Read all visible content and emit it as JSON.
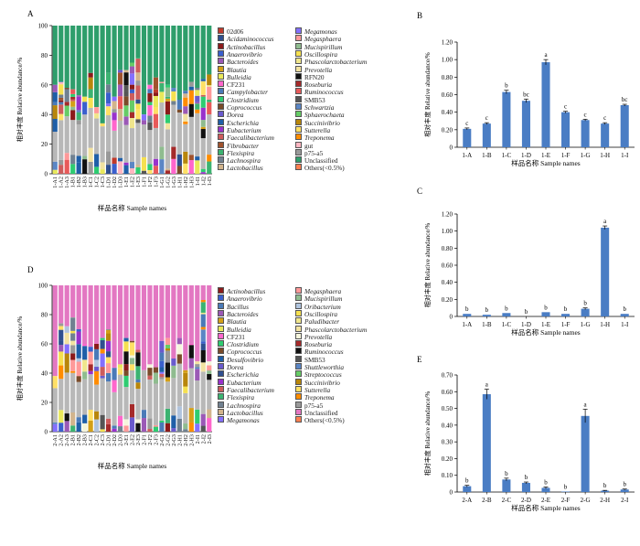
{
  "chart_data": [
    {
      "panel": "A",
      "type": "bar",
      "stacked": true,
      "xlabel": "样品名称 Sample names",
      "ylabel": "相对丰度 Relative abundance/%",
      "ylim": [
        0,
        100
      ],
      "yticks": [
        "0",
        "20",
        "40",
        "60",
        "80",
        "100"
      ],
      "categories": [
        "1-A1",
        "1-A2",
        "1-A3",
        "1-B1",
        "1-B2",
        "1-B3",
        "1-C1",
        "1-C2",
        "1-C3",
        "1-D1",
        "1-D2",
        "1-D3",
        "1-E1",
        "1-E2",
        "1-E3",
        "1-F1",
        "1-F2",
        "1-F3",
        "1-G1",
        "1-G2",
        "1-G3",
        "1-H1",
        "1-H2",
        "1-H3",
        "1-I1",
        "1-I2",
        "1-I3"
      ],
      "top_series": "Unclassified",
      "top_series_bottom": [
        60,
        62,
        58,
        57,
        53,
        52,
        68,
        45,
        34,
        68,
        52,
        70,
        70,
        75,
        78,
        40,
        60,
        65,
        62,
        60,
        58,
        50,
        56,
        62,
        58,
        64,
        67
      ],
      "legend": [
        {
          "name": "02d06",
          "color": "#c0392b",
          "italic": false
        },
        {
          "name": "Acidaminococcus",
          "color": "#2f4f8f",
          "italic": true
        },
        {
          "name": "Actinobacillus",
          "color": "#8b1a1a",
          "italic": true
        },
        {
          "name": "Anaerovibrio",
          "color": "#3a5fcd",
          "italic": true
        },
        {
          "name": "Bacteroides",
          "color": "#9b59b6",
          "italic": true
        },
        {
          "name": "Blautia",
          "color": "#d4a017",
          "italic": true
        },
        {
          "name": "Bulleidia",
          "color": "#e8e85a",
          "italic": true
        },
        {
          "name": "CF231",
          "color": "#ff66cc",
          "italic": false
        },
        {
          "name": "Campylobacter",
          "color": "#4a7ab8",
          "italic": true
        },
        {
          "name": "Clostridium",
          "color": "#2ecc71",
          "italic": true
        },
        {
          "name": "Coprococcus",
          "color": "#7a4b2a",
          "italic": true
        },
        {
          "name": "Dorea",
          "color": "#6a5acd",
          "italic": true
        },
        {
          "name": "Escherichia",
          "color": "#1f5fa8",
          "italic": true
        },
        {
          "name": "Eubacterium",
          "color": "#9932cc",
          "italic": true
        },
        {
          "name": "Faecalibacterium",
          "color": "#cd5c5c",
          "italic": true
        },
        {
          "name": "Fibrobacter",
          "color": "#a0522d",
          "italic": true
        },
        {
          "name": "Flexispira",
          "color": "#3cb371",
          "italic": true
        },
        {
          "name": "Lachnospira",
          "color": "#708090",
          "italic": true
        },
        {
          "name": "Lactobacillus",
          "color": "#d2b48c",
          "italic": true
        },
        {
          "name": "Megamonas",
          "color": "#8470ff",
          "italic": true
        },
        {
          "name": "Megasphaera",
          "color": "#ff9999",
          "italic": true
        },
        {
          "name": "Mucispirillum",
          "color": "#8fbc8f",
          "italic": true
        },
        {
          "name": "Oscillospira",
          "color": "#f5e050",
          "italic": true
        },
        {
          "name": "Phascolarctobacterium",
          "color": "#f0e68c",
          "italic": true
        },
        {
          "name": "Prevotella",
          "color": "#f2e2a0",
          "italic": true
        },
        {
          "name": "RFN20",
          "color": "#111111",
          "italic": false
        },
        {
          "name": "Roseburia",
          "color": "#a52a2a",
          "italic": true
        },
        {
          "name": "Ruminococcus",
          "color": "#e85a5a",
          "italic": true
        },
        {
          "name": "SMB53",
          "color": "#555555",
          "italic": false
        },
        {
          "name": "Schwartzia",
          "color": "#5b86c5",
          "italic": true
        },
        {
          "name": "Sphaerochaeta",
          "color": "#66cc66",
          "italic": true
        },
        {
          "name": "Succinivibrio",
          "color": "#b8860b",
          "italic": true
        },
        {
          "name": "Sutterella",
          "color": "#ffe066",
          "italic": true
        },
        {
          "name": "Treponema",
          "color": "#ff8c00",
          "italic": true
        },
        {
          "name": "gut",
          "color": "#ffb6c1",
          "italic": false
        },
        {
          "name": "p75-a5",
          "color": "#999999",
          "italic": false
        },
        {
          "name": "Unclassified",
          "color": "#2e9e6b",
          "italic": false
        },
        {
          "name": "Others(<0.5%)",
          "color": "#ff7f50",
          "italic": false
        }
      ]
    },
    {
      "panel": "B",
      "type": "bar",
      "xlabel": "样品名称 Sample names",
      "ylabel": "相对丰度 Relative abundance/%",
      "ylim": [
        0,
        1.2
      ],
      "yticks": [
        "0",
        "0.20",
        "0.40",
        "0.60",
        "0.80",
        "1.00",
        "1.20"
      ],
      "categories": [
        "1-A",
        "1-B",
        "1-C",
        "1-D",
        "1-E",
        "1-F",
        "1-G",
        "1-H",
        "1-I"
      ],
      "values": [
        0.21,
        0.27,
        0.63,
        0.53,
        0.97,
        0.4,
        0.31,
        0.27,
        0.48
      ],
      "errors": [
        0.01,
        0.01,
        0.02,
        0.02,
        0.03,
        0.01,
        0.01,
        0.01,
        0.01
      ],
      "labels": [
        "c",
        "c",
        "b",
        "bc",
        "a",
        "c",
        "c",
        "c",
        "bc"
      ]
    },
    {
      "panel": "C",
      "type": "bar",
      "xlabel": "样品名称 Sample names",
      "ylabel": "相对丰度 Relative abundance/%",
      "ylim": [
        0,
        1.2
      ],
      "yticks": [
        "0",
        "0.20",
        "0.40",
        "0.60",
        "0.80",
        "1.00",
        "1.20"
      ],
      "categories": [
        "1-A",
        "1-B",
        "1-C",
        "1-D",
        "1-E",
        "1-F",
        "1-G",
        "1-H",
        "1-I"
      ],
      "values": [
        0.03,
        0.02,
        0.04,
        0.0,
        0.05,
        0.03,
        0.09,
        1.04,
        0.03
      ],
      "errors": [
        0.0,
        0.0,
        0.0,
        0.0,
        0.0,
        0.0,
        0.01,
        0.02,
        0.0
      ],
      "labels": [
        "b",
        "b",
        "b",
        "b",
        "b",
        "b",
        "b",
        "a",
        "b"
      ]
    },
    {
      "panel": "D",
      "type": "bar",
      "stacked": true,
      "xlabel": "样品名称 Sample names",
      "ylabel": "相对丰度 Relative abundance/%",
      "ylim": [
        0,
        100
      ],
      "yticks": [
        "0",
        "20",
        "40",
        "60",
        "80",
        "100"
      ],
      "categories": [
        "2-A1",
        "2-A2",
        "2-A3",
        "2-B1",
        "2-B2",
        "2-B3",
        "2-C1",
        "2-C2",
        "2-C3",
        "2-D1",
        "2-D2",
        "2-D3",
        "2-E1",
        "2-E2",
        "2-E3",
        "2-F1",
        "2-F2",
        "2-F3",
        "2-G1",
        "2-G2",
        "2-G3",
        "2-H1",
        "2-H2",
        "2-H3",
        "2-I1",
        "2-I2",
        "2-I3"
      ],
      "top_series": "Unclassified",
      "top_series_bottom": [
        38,
        74,
        72,
        78,
        70,
        60,
        58,
        60,
        64,
        70,
        44,
        46,
        64,
        62,
        56,
        42,
        46,
        44,
        62,
        64,
        50,
        64,
        42,
        60,
        48,
        90,
        48
      ],
      "legend": [
        {
          "name": "Actinobacillus",
          "color": "#8b1a1a",
          "italic": true
        },
        {
          "name": "Anaerovibrio",
          "color": "#3a5fcd",
          "italic": true
        },
        {
          "name": "Bacillus",
          "color": "#4a7ab8",
          "italic": true
        },
        {
          "name": "Bacteroides",
          "color": "#9b59b6",
          "italic": true
        },
        {
          "name": "Blautia",
          "color": "#d4a017",
          "italic": true
        },
        {
          "name": "Bulleidia",
          "color": "#e8e85a",
          "italic": true
        },
        {
          "name": "CF231",
          "color": "#ff66cc",
          "italic": false
        },
        {
          "name": "Clostridium",
          "color": "#2ecc71",
          "italic": true
        },
        {
          "name": "Coprococcus",
          "color": "#7a4b2a",
          "italic": true
        },
        {
          "name": "Desulfovibrio",
          "color": "#1f5fa8",
          "italic": true
        },
        {
          "name": "Dorea",
          "color": "#6a5acd",
          "italic": true
        },
        {
          "name": "Escherichia",
          "color": "#2f4f8f",
          "italic": true
        },
        {
          "name": "Eubacterium",
          "color": "#9932cc",
          "italic": true
        },
        {
          "name": "Faecalibacterium",
          "color": "#cd5c5c",
          "italic": true
        },
        {
          "name": "Flexispira",
          "color": "#3cb371",
          "italic": true
        },
        {
          "name": "Lachnospira",
          "color": "#708090",
          "italic": true
        },
        {
          "name": "Lactobacillus",
          "color": "#d2b48c",
          "italic": true
        },
        {
          "name": "Megamonas",
          "color": "#8470ff",
          "italic": true
        },
        {
          "name": "Megasphaera",
          "color": "#ff9999",
          "italic": true
        },
        {
          "name": "Mucispirillum",
          "color": "#8fbc8f",
          "italic": true
        },
        {
          "name": "Oribacterium",
          "color": "#b0c4de",
          "italic": true
        },
        {
          "name": "Oscillospira",
          "color": "#f5e050",
          "italic": true
        },
        {
          "name": "Paludibacter",
          "color": "#f0e68c",
          "italic": true
        },
        {
          "name": "Phascolarctobacterium",
          "color": "#f2e2a0",
          "italic": true
        },
        {
          "name": "Prevotella",
          "color": "#f5f5dc",
          "italic": true
        },
        {
          "name": "Roseburia",
          "color": "#a52a2a",
          "italic": true
        },
        {
          "name": "Ruminococcus",
          "color": "#111111",
          "italic": true
        },
        {
          "name": "SMB53",
          "color": "#555555",
          "italic": false
        },
        {
          "name": "Shuttleworthia",
          "color": "#5b86c5",
          "italic": true
        },
        {
          "name": "Streptococcus",
          "color": "#66cc66",
          "italic": true
        },
        {
          "name": "Succinivibrio",
          "color": "#b8860b",
          "italic": true
        },
        {
          "name": "Sutterella",
          "color": "#ffe066",
          "italic": true
        },
        {
          "name": "Treponema",
          "color": "#ff8c00",
          "italic": true
        },
        {
          "name": "p75-a5",
          "color": "#999999",
          "italic": false
        },
        {
          "name": "Unclassified",
          "color": "#e377c2",
          "italic": false
        },
        {
          "name": "Others(<0.5%)",
          "color": "#ff7f50",
          "italic": false
        }
      ]
    },
    {
      "panel": "E",
      "type": "bar",
      "xlabel": "样品名称 Sample names",
      "ylabel": "相对丰度 Relative abundance/%",
      "ylim": [
        0,
        0.7
      ],
      "yticks": [
        "0",
        "0.10",
        "0.20",
        "0.30",
        "0.40",
        "0.50",
        "0.60",
        "0.70"
      ],
      "categories": [
        "2-A",
        "2-B",
        "2-C",
        "2-D",
        "2-E",
        "2-F",
        "2-G",
        "2-H",
        "2-I"
      ],
      "values": [
        0.035,
        0.585,
        0.075,
        0.055,
        0.025,
        0.003,
        0.455,
        0.008,
        0.015
      ],
      "errors": [
        0.005,
        0.03,
        0.008,
        0.005,
        0.005,
        0.0,
        0.04,
        0.002,
        0.003
      ],
      "labels": [
        "b",
        "a",
        "b",
        "b",
        "b",
        "b",
        "a",
        "b",
        "b"
      ]
    }
  ],
  "colors": {
    "bar_fill": "#4a7dc4",
    "axis": "#000000"
  }
}
